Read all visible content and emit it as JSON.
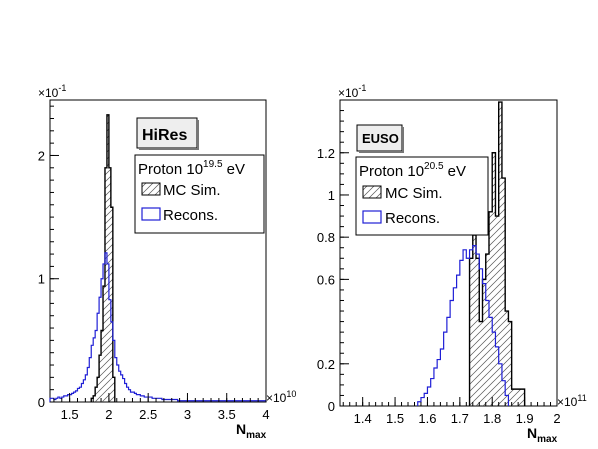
{
  "chart_data": [
    {
      "type": "histogram",
      "badge": "HiRes",
      "legend": {
        "title_prefix": "Proton 10",
        "title_exp": "19.5",
        "title_suffix": " eV",
        "entries": [
          "MC Sim.",
          "Recons."
        ]
      },
      "xlabel_main": "N",
      "xlabel_sub": "max",
      "x_multiplier_base": "×10",
      "x_multiplier_exp": "10",
      "y_multiplier_base": "×10",
      "y_multiplier_exp": "-1",
      "xlim": [
        1.25,
        4.0
      ],
      "ylim": [
        0,
        2.45
      ],
      "x_ticks": [
        "1.5",
        "2",
        "2.5",
        "3",
        "3.5",
        "4"
      ],
      "x_tick_values": [
        1.5,
        2,
        2.5,
        3,
        3.5,
        4
      ],
      "y_ticks": [
        "0",
        "1",
        "2"
      ],
      "y_tick_values": [
        0,
        1,
        2
      ],
      "series": [
        {
          "name": "MC Sim.",
          "color": "#000000",
          "fill": "hatch",
          "bin_edges": [
            1.775,
            1.8,
            1.825,
            1.85,
            1.875,
            1.9,
            1.925,
            1.95,
            1.975,
            2.0,
            2.025,
            2.05,
            2.075
          ],
          "values": [
            0.03,
            0.05,
            0.12,
            0.2,
            0.38,
            0.58,
            0.94,
            1.9,
            2.33,
            1.9,
            1.58,
            0.2
          ]
        },
        {
          "name": "Recons.",
          "color": "#1f1fd6",
          "fill": "none",
          "bin_edges": [
            1.25,
            1.275,
            1.3,
            1.325,
            1.35,
            1.375,
            1.4,
            1.425,
            1.45,
            1.475,
            1.5,
            1.525,
            1.55,
            1.575,
            1.6,
            1.625,
            1.65,
            1.675,
            1.7,
            1.725,
            1.75,
            1.775,
            1.8,
            1.825,
            1.85,
            1.875,
            1.9,
            1.925,
            1.95,
            1.975,
            2.0,
            2.025,
            2.05,
            2.075,
            2.1,
            2.125,
            2.15,
            2.175,
            2.2,
            2.225,
            2.25,
            2.275,
            2.3,
            2.325,
            2.35,
            2.375,
            2.4,
            2.425,
            2.45,
            2.475,
            2.5,
            2.525,
            2.55,
            2.575,
            2.6,
            2.625,
            2.65,
            2.675,
            2.7,
            2.725,
            2.75,
            2.775,
            2.8,
            2.825,
            2.85,
            2.875,
            2.9,
            2.925,
            2.95,
            2.975,
            3.0,
            3.025,
            3.05,
            3.075,
            3.1,
            3.125,
            3.15,
            3.175,
            3.2,
            3.225,
            3.25,
            3.275,
            3.3,
            3.325,
            3.35,
            3.375,
            3.4,
            3.425,
            3.45,
            3.475,
            3.5,
            3.525,
            3.55,
            3.575,
            3.6,
            3.625,
            3.65,
            3.675,
            3.7,
            3.725,
            3.75,
            3.775,
            3.8,
            3.825,
            3.85,
            3.875,
            3.9,
            3.925,
            3.95,
            3.975,
            4.0
          ],
          "values": [
            0.03,
            0.03,
            0.02,
            0.03,
            0.04,
            0.03,
            0.04,
            0.05,
            0.05,
            0.06,
            0.06,
            0.07,
            0.08,
            0.09,
            0.11,
            0.12,
            0.15,
            0.18,
            0.22,
            0.28,
            0.36,
            0.46,
            0.52,
            0.58,
            0.72,
            0.85,
            1.0,
            1.12,
            1.21,
            1.12,
            0.83,
            0.65,
            0.5,
            0.36,
            0.3,
            0.25,
            0.22,
            0.19,
            0.15,
            0.12,
            0.1,
            0.08,
            0.08,
            0.07,
            0.06,
            0.06,
            0.05,
            0.05,
            0.04,
            0.04,
            0.04,
            0.04,
            0.03,
            0.03,
            0.03,
            0.03,
            0.03,
            0.02,
            0.02,
            0.02,
            0.02,
            0.02,
            0.02,
            0.02,
            0.02,
            0.01,
            0.01,
            0.01,
            0.01,
            0.01,
            0.01,
            0.01,
            0.01,
            0.01,
            0.01,
            0.01,
            0.01,
            0.01,
            0.01,
            0.01,
            0.01,
            0.01,
            0.01,
            0.01,
            0.01,
            0.01,
            0.01,
            0.01,
            0.01,
            0.01,
            0.01,
            0.01,
            0.01,
            0.01,
            0.01,
            0.01,
            0.01,
            0.01,
            0.01,
            0.01,
            0.01,
            0.01,
            0.01,
            0.01,
            0.01,
            0.01,
            0.01,
            0.01,
            0.01,
            0.01
          ]
        }
      ]
    },
    {
      "type": "histogram",
      "badge": "EUSO",
      "legend": {
        "title_prefix": "Proton 10",
        "title_exp": "20.5",
        "title_suffix": " eV",
        "entries": [
          "MC Sim.",
          "Recons."
        ]
      },
      "xlabel_main": "N",
      "xlabel_sub": "max",
      "x_multiplier_base": "×10",
      "x_multiplier_exp": "11",
      "y_multiplier_base": "×10",
      "y_multiplier_exp": "-1",
      "xlim": [
        1.33,
        2.0
      ],
      "ylim": [
        0,
        1.45
      ],
      "x_ticks": [
        "1.4",
        "1.5",
        "1.6",
        "1.7",
        "1.8",
        "1.9",
        "2"
      ],
      "x_tick_values": [
        1.4,
        1.5,
        1.6,
        1.7,
        1.8,
        1.9,
        2.0
      ],
      "y_ticks": [
        "0",
        "0.2",
        "0.6",
        "0.8",
        "1",
        "1.2"
      ],
      "y_tick_values": [
        0,
        0.2,
        0.6,
        0.8,
        1.0,
        1.2
      ],
      "series": [
        {
          "name": "MC Sim.",
          "color": "#000000",
          "fill": "hatch",
          "bin_edges": [
            1.73,
            1.74,
            1.75,
            1.76,
            1.77,
            1.78,
            1.79,
            1.8,
            1.81,
            1.82,
            1.83,
            1.84,
            1.85,
            1.86,
            1.87,
            1.88,
            1.89,
            1.9
          ],
          "values": [
            0.7,
            0.81,
            0.7,
            0.4,
            0.6,
            0.72,
            0.92,
            1.2,
            0.9,
            1.44,
            1.08,
            0.45,
            0.4,
            0.08,
            0.08,
            0.08,
            0.08
          ]
        },
        {
          "name": "Recons.",
          "color": "#1f1fd6",
          "fill": "none",
          "bin_edges": [
            1.57,
            1.58,
            1.59,
            1.6,
            1.61,
            1.62,
            1.63,
            1.64,
            1.65,
            1.66,
            1.67,
            1.68,
            1.69,
            1.7,
            1.71,
            1.72,
            1.73,
            1.74,
            1.75,
            1.76,
            1.77,
            1.78,
            1.79,
            1.8,
            1.81,
            1.82,
            1.83,
            1.84,
            1.85
          ],
          "values": [
            0.02,
            0.04,
            0.06,
            0.09,
            0.13,
            0.18,
            0.22,
            0.27,
            0.35,
            0.42,
            0.5,
            0.56,
            0.62,
            0.69,
            0.74,
            0.7,
            0.74,
            0.76,
            0.72,
            0.65,
            0.58,
            0.5,
            0.42,
            0.35,
            0.28,
            0.2,
            0.12,
            0.05
          ]
        }
      ]
    }
  ]
}
